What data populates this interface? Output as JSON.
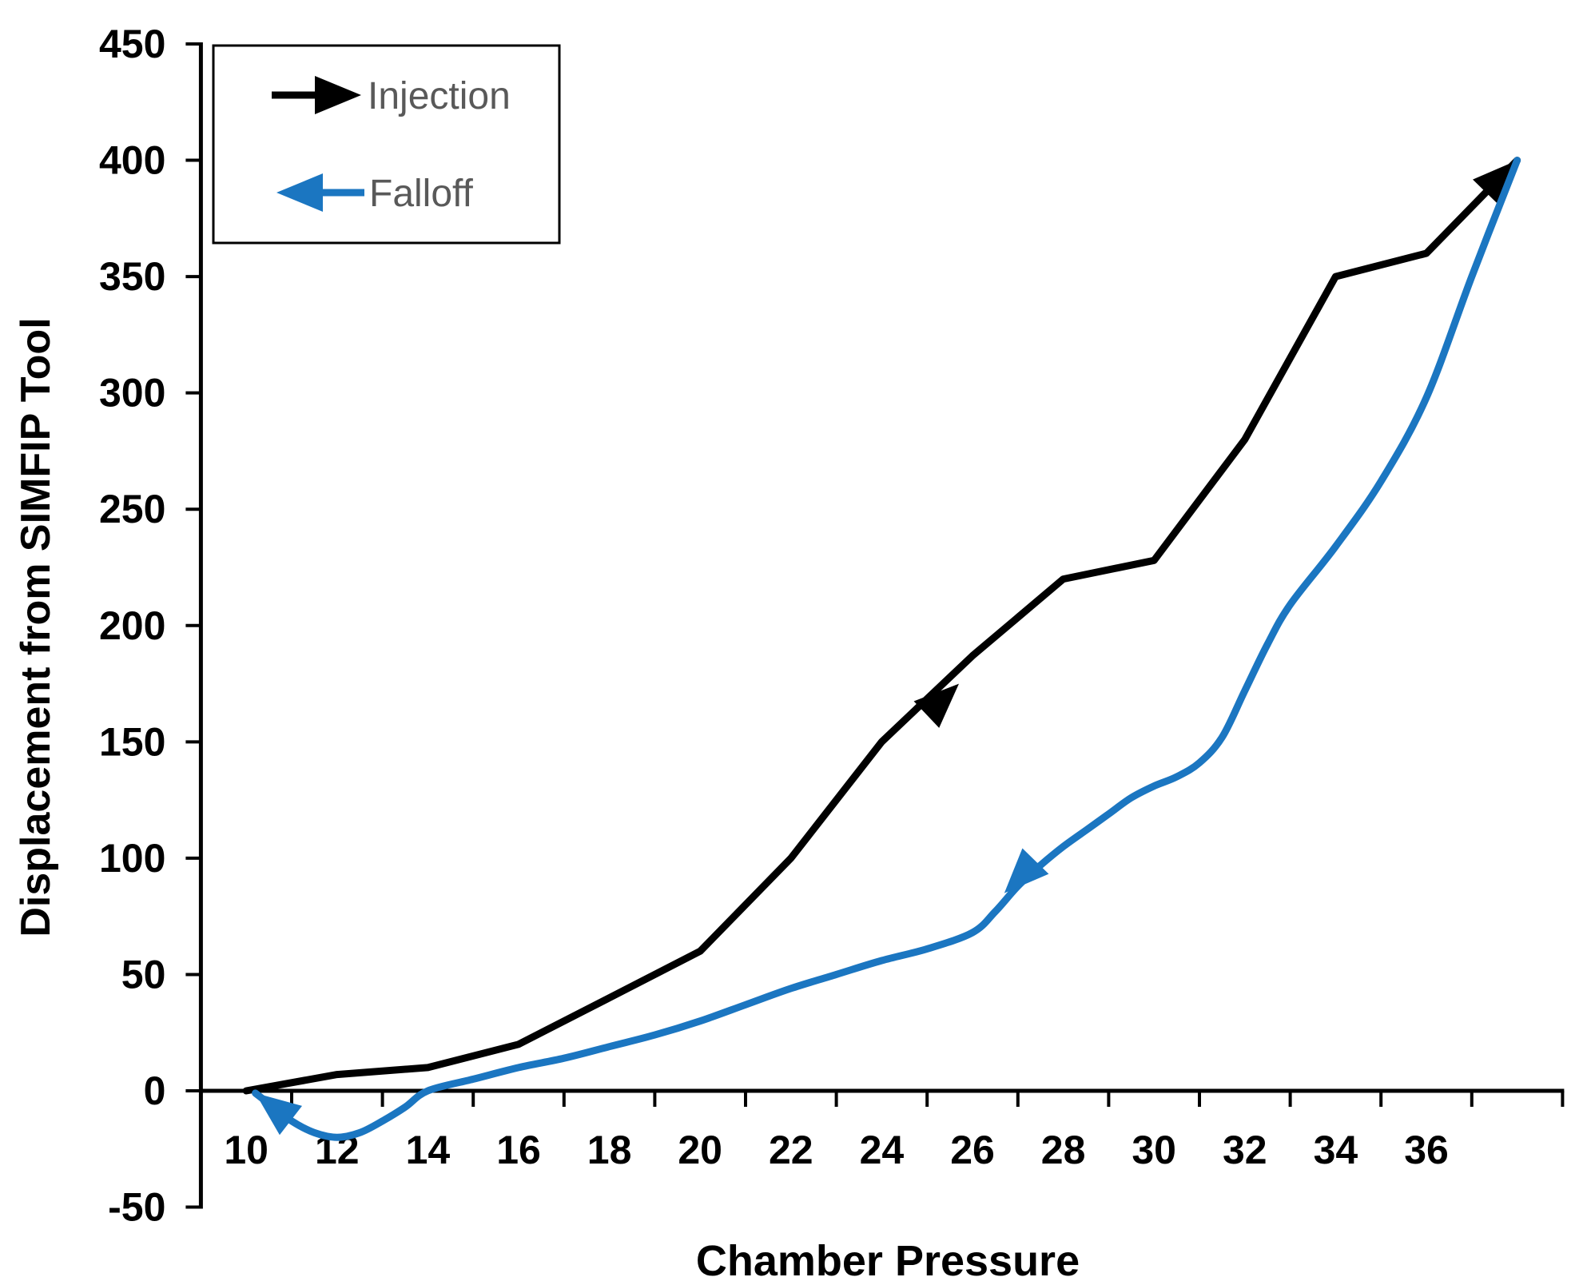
{
  "chart_data": {
    "type": "line",
    "title": "",
    "xlabel": "Chamber Pressure",
    "ylabel": "Displacement from SIMFIP Tool",
    "xlim": [
      9,
      39
    ],
    "ylim": [
      -50,
      450
    ],
    "x_tick_labels": [
      10,
      12,
      14,
      16,
      18,
      20,
      22,
      24,
      26,
      28,
      30,
      32,
      34,
      36
    ],
    "y_tick_labels": [
      -50,
      0,
      50,
      100,
      150,
      200,
      250,
      300,
      350,
      400,
      450
    ],
    "grid": false,
    "legend_position": "top-left",
    "axis_color": "#000000",
    "tick_text_color": "#000000",
    "legend_text_color": "#595959",
    "series": [
      {
        "name": "Injection",
        "color": "#000000",
        "smooth": false,
        "direction": "increasing-pressure",
        "points": [
          [
            10,
            0
          ],
          [
            12,
            7
          ],
          [
            14,
            10
          ],
          [
            16,
            20
          ],
          [
            18,
            40
          ],
          [
            20,
            60
          ],
          [
            22,
            100
          ],
          [
            24,
            150
          ],
          [
            26,
            187
          ],
          [
            28,
            220
          ],
          [
            30,
            228
          ],
          [
            32,
            280
          ],
          [
            34,
            350
          ],
          [
            36,
            360
          ],
          [
            38,
            400
          ]
        ],
        "arrows": [
          {
            "tip": [
              25.7,
              175
            ],
            "dir": [
              [
                24,
                150
              ],
              [
                26,
                187
              ]
            ]
          },
          {
            "tip": [
              38,
              400
            ],
            "dir": [
              [
                36,
                360
              ],
              [
                38,
                400
              ]
            ]
          }
        ]
      },
      {
        "name": "Falloff",
        "color": "#1b76c1",
        "smooth": true,
        "direction": "decreasing-pressure",
        "points": [
          [
            38,
            400
          ],
          [
            37,
            350
          ],
          [
            36,
            298
          ],
          [
            35,
            262
          ],
          [
            34,
            234
          ],
          [
            33,
            209
          ],
          [
            32.5,
            192
          ],
          [
            32,
            172
          ],
          [
            31.5,
            152
          ],
          [
            31,
            141
          ],
          [
            30.5,
            135
          ],
          [
            30,
            131
          ],
          [
            29.5,
            126
          ],
          [
            29,
            119
          ],
          [
            28.5,
            112
          ],
          [
            28,
            105
          ],
          [
            27.5,
            97
          ],
          [
            27,
            88
          ],
          [
            26.5,
            77
          ],
          [
            26,
            68
          ],
          [
            25,
            61
          ],
          [
            24,
            56
          ],
          [
            23,
            50
          ],
          [
            22,
            44
          ],
          [
            21,
            37
          ],
          [
            20,
            30
          ],
          [
            19,
            24
          ],
          [
            18,
            19
          ],
          [
            17,
            14
          ],
          [
            16,
            10
          ],
          [
            15,
            5
          ],
          [
            14,
            0
          ],
          [
            13.5,
            -7
          ],
          [
            13,
            -13
          ],
          [
            12.5,
            -18
          ],
          [
            12,
            -20
          ],
          [
            11.5,
            -18
          ],
          [
            11,
            -13
          ],
          [
            10.6,
            -7
          ],
          [
            10.2,
            -1
          ]
        ],
        "arrows": [
          {
            "tip": [
              26.7,
              85
            ],
            "dir": [
              [
                27.5,
                97
              ],
              [
                26.5,
                77
              ]
            ]
          },
          {
            "tip": [
              10.2,
              -1
            ],
            "dir": [
              [
                10.6,
                -7
              ],
              [
                10.2,
                -1
              ]
            ]
          }
        ]
      }
    ]
  }
}
